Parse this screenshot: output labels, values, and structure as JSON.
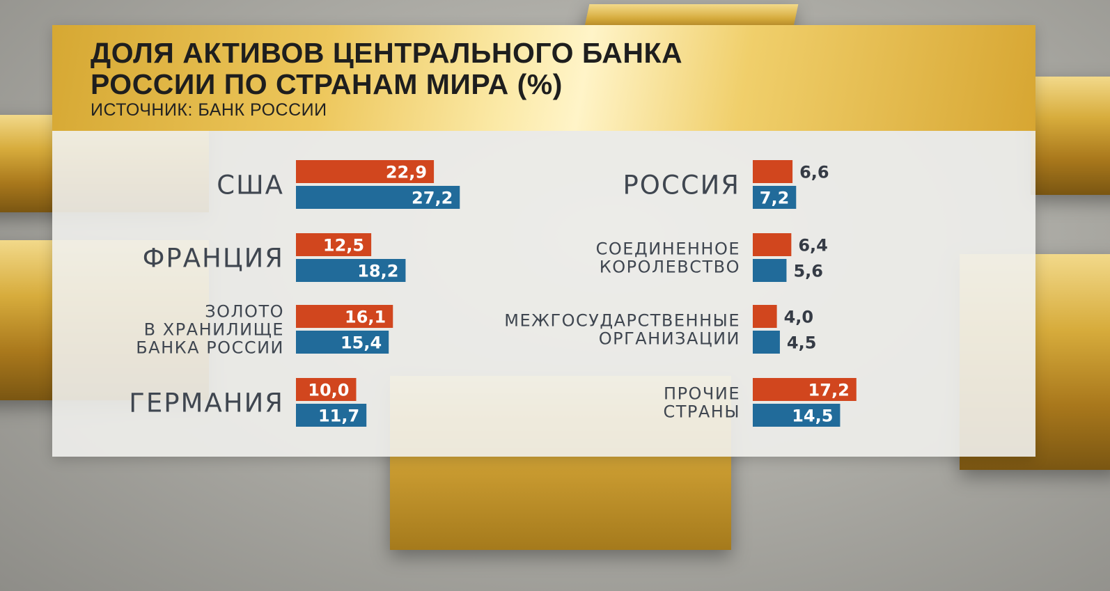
{
  "chart_data": {
    "type": "bar",
    "title": "ДОЛЯ АКТИВОВ ЦЕНТРАЛЬНОГО БАНКА РОССИИ ПО СТРАНАМ МИРА (%)",
    "title_lines": [
      "ДОЛЯ АКТИВОВ ЦЕНТРАЛЬНОГО БАНКА",
      "РОССИИ ПО СТРАНАМ МИРА (%)"
    ],
    "subtitle": "ИСТОЧНИК: БАНК РОССИИ",
    "orientation": "horizontal",
    "legend": "none",
    "grid": false,
    "decimal_separator": ",",
    "colors": {
      "first": "#d1461e",
      "second": "#216b9a",
      "label": "#3f4650",
      "value_dark": "#353b45"
    },
    "categories": [
      {
        "name": "США",
        "label_lines": [
          "США"
        ],
        "values": [
          22.9,
          27.2
        ]
      },
      {
        "name": "ФРАНЦИЯ",
        "label_lines": [
          "ФРАНЦИЯ"
        ],
        "values": [
          12.5,
          18.2
        ]
      },
      {
        "name": "ЗОЛОТО В ХРАНИЛИЩЕ БАНКА РОССИИ",
        "label_lines": [
          "ЗОЛОТО",
          "В ХРАНИЛИЩЕ",
          "БАНКА РОССИИ"
        ],
        "values": [
          16.1,
          15.4
        ]
      },
      {
        "name": "ГЕРМАНИЯ",
        "label_lines": [
          "ГЕРМАНИЯ"
        ],
        "values": [
          10.0,
          11.7
        ]
      },
      {
        "name": "РОССИЯ",
        "label_lines": [
          "РОССИЯ"
        ],
        "values": [
          6.6,
          7.2
        ]
      },
      {
        "name": "СОЕДИНЕННОЕ КОРОЛЕВСТВО",
        "label_lines": [
          "СОЕДИНЕННОЕ",
          "КОРОЛЕВСТВО"
        ],
        "values": [
          6.4,
          5.6
        ]
      },
      {
        "name": "МЕЖГОСУДАРСТВЕННЫЕ ОРГАНИЗАЦИИ",
        "label_lines": [
          "МЕЖГОСУДАРСТВЕННЫЕ",
          "ОРГАНИЗАЦИИ"
        ],
        "values": [
          4.0,
          4.5
        ]
      },
      {
        "name": "ПРОЧИЕ СТРАНЫ",
        "label_lines": [
          "ПРОЧИЕ",
          "СТРАНЫ"
        ],
        "values": [
          17.2,
          14.5
        ]
      }
    ]
  }
}
